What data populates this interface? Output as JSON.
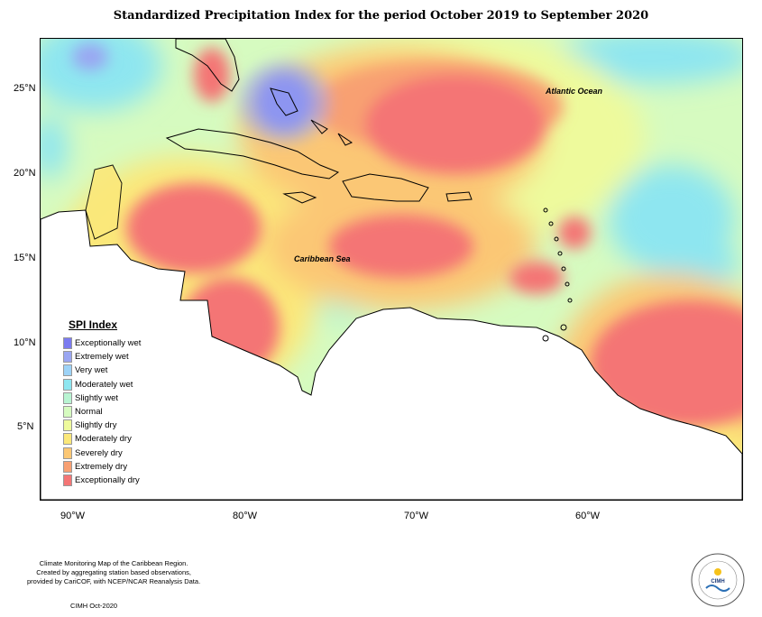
{
  "title": "Standardized Precipitation Index for the period October 2019 to September 2020",
  "map_labels": {
    "ocean": "Atlantic Ocean",
    "sea": "Caribbean Sea"
  },
  "lat_ticks": [
    "25°N",
    "20°N",
    "15°N",
    "10°N",
    "5°N"
  ],
  "lon_ticks": [
    "90°W",
    "80°W",
    "70°W",
    "60°W"
  ],
  "legend": {
    "title": "SPI Index",
    "items": [
      {
        "label": "Exceptionally wet",
        "color": "#7b7bf0"
      },
      {
        "label": "Extremely wet",
        "color": "#9aa6f2"
      },
      {
        "label": "Very wet",
        "color": "#9dd3f7"
      },
      {
        "label": "Moderately wet",
        "color": "#8ee6f0"
      },
      {
        "label": "Slightly wet",
        "color": "#b8f4d2"
      },
      {
        "label": "Normal",
        "color": "#d6fbc0"
      },
      {
        "label": "Slightly dry",
        "color": "#eefa9c"
      },
      {
        "label": "Moderately dry",
        "color": "#fbe87a"
      },
      {
        "label": "Severely dry",
        "color": "#fbc774"
      },
      {
        "label": "Extremely dry",
        "color": "#f8a072"
      },
      {
        "label": "Exceptionally dry",
        "color": "#f47575"
      }
    ]
  },
  "footer": {
    "lines": [
      "Climate Monitoring Map of the Caribbean Region.",
      "Created by aggregating station based observations,",
      "provided by CariCOF, with NCEP/NCAR Reanalysis Data."
    ],
    "credit": "CIMH  Oct-2020"
  },
  "logo": {
    "text": "CIMH"
  }
}
